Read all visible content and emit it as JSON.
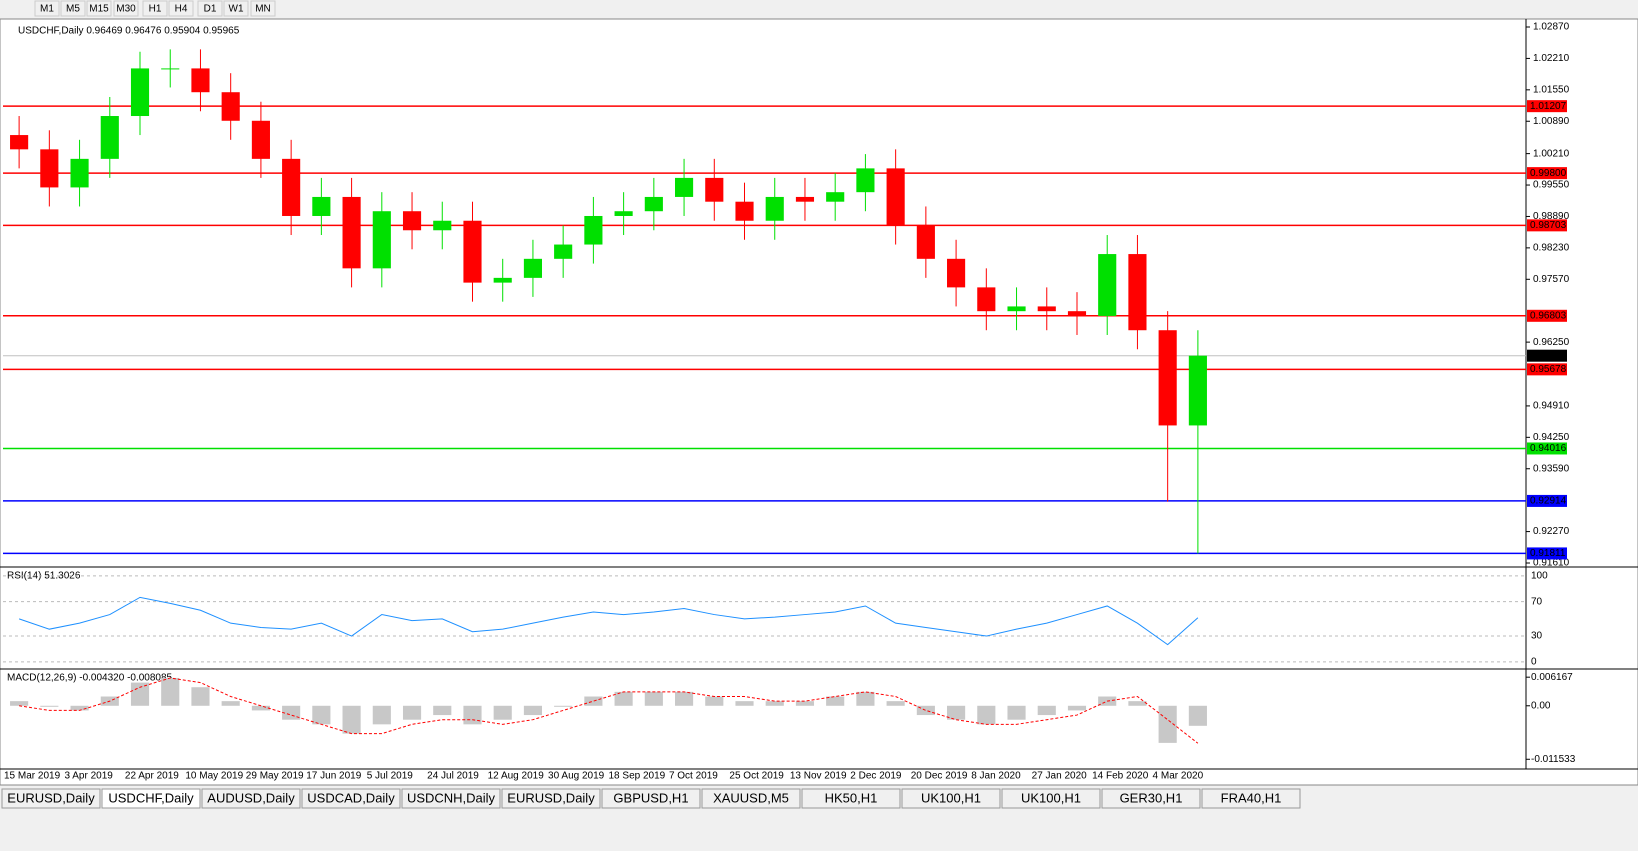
{
  "toolbar": {
    "periods": [
      "M1",
      "M5",
      "M15",
      "M30",
      "H1",
      "H4",
      "D1",
      "W1",
      "MN"
    ]
  },
  "chart_data": {
    "type": "candlestick",
    "header": "USDCHF,Daily  0.96469 0.96476 0.95904 0.95965",
    "x_labels": [
      "15 Mar 2019",
      "3 Apr 2019",
      "22 Apr 2019",
      "10 May 2019",
      "29 May 2019",
      "17 Jun 2019",
      "5 Jul 2019",
      "24 Jul 2019",
      "12 Aug 2019",
      "30 Aug 2019",
      "18 Sep 2019",
      "7 Oct 2019",
      "25 Oct 2019",
      "13 Nov 2019",
      "2 Dec 2019",
      "20 Dec 2019",
      "8 Jan 2020",
      "27 Jan 2020",
      "14 Feb 2020",
      "4 Mar 2020"
    ],
    "open": [
      1.006,
      1.003,
      0.995,
      1.001,
      1.01,
      1.02,
      1.02,
      1.015,
      1.009,
      1.001,
      0.989,
      0.993,
      0.978,
      0.99,
      0.986,
      0.988,
      0.975,
      0.976,
      0.98,
      0.983,
      0.989,
      0.99,
      0.993,
      0.997,
      0.992,
      0.988,
      0.993,
      0.992,
      0.994,
      0.999,
      0.987,
      0.98,
      0.974,
      0.969,
      0.97,
      0.969,
      0.968,
      0.981,
      0.965,
      0.945
    ],
    "high": [
      1.01,
      1.007,
      1.005,
      1.014,
      1.0235,
      1.024,
      1.024,
      1.019,
      1.013,
      1.005,
      0.997,
      0.997,
      0.994,
      0.994,
      0.992,
      0.992,
      0.98,
      0.984,
      0.987,
      0.993,
      0.994,
      0.997,
      1.001,
      1.001,
      0.996,
      0.997,
      0.997,
      0.998,
      1.002,
      1.003,
      0.991,
      0.984,
      0.978,
      0.974,
      0.974,
      0.973,
      0.985,
      0.985,
      0.969,
      0.965
    ],
    "low": [
      0.999,
      0.991,
      0.991,
      0.997,
      1.006,
      1.016,
      1.011,
      1.005,
      0.997,
      0.985,
      0.985,
      0.974,
      0.974,
      0.982,
      0.982,
      0.971,
      0.971,
      0.972,
      0.976,
      0.979,
      0.985,
      0.986,
      0.989,
      0.988,
      0.984,
      0.984,
      0.988,
      0.988,
      0.99,
      0.983,
      0.976,
      0.97,
      0.965,
      0.965,
      0.965,
      0.964,
      0.964,
      0.961,
      0.929,
      0.9181
    ],
    "close": [
      1.003,
      0.995,
      1.001,
      1.01,
      1.02,
      1.02,
      1.015,
      1.009,
      1.001,
      0.989,
      0.993,
      0.978,
      0.99,
      0.986,
      0.988,
      0.975,
      0.976,
      0.98,
      0.983,
      0.989,
      0.99,
      0.993,
      0.997,
      0.992,
      0.988,
      0.993,
      0.992,
      0.994,
      0.999,
      0.987,
      0.98,
      0.974,
      0.969,
      0.97,
      0.969,
      0.968,
      0.981,
      0.965,
      0.945,
      0.95965
    ],
    "up_color": "#00e000",
    "down_color": "#ff0000",
    "ylim": [
      0.91547,
      1.02975
    ],
    "yticks": [
      {
        "value": 1.0287,
        "label": "1.02870"
      },
      {
        "value": 1.0221,
        "label": "1.02210"
      },
      {
        "value": 1.0155,
        "label": "1.01550"
      },
      {
        "value": 1.0089,
        "label": "1.00890"
      },
      {
        "value": 1.0021,
        "label": "1.00210"
      },
      {
        "value": 0.9955,
        "label": "0.99550"
      },
      {
        "value": 0.9889,
        "label": "0.98890"
      },
      {
        "value": 0.9823,
        "label": "0.98230"
      },
      {
        "value": 0.9757,
        "label": "0.97570"
      },
      {
        "value": 0.9625,
        "label": "0.96250"
      },
      {
        "value": 0.9491,
        "label": "0.94910"
      },
      {
        "value": 0.9425,
        "label": "0.94250"
      },
      {
        "value": 0.9359,
        "label": "0.93590"
      },
      {
        "value": 0.9227,
        "label": "0.92270"
      },
      {
        "value": 0.9161,
        "label": "0.91610"
      }
    ],
    "levels": [
      {
        "value": 1.01207,
        "label": "1.01207",
        "color": "#ff0000"
      },
      {
        "value": 0.998,
        "label": "0.99800",
        "color": "#ff0000"
      },
      {
        "value": 0.98703,
        "label": "0.98703",
        "color": "#ff0000"
      },
      {
        "value": 0.96803,
        "label": "0.96803",
        "color": "#ff0000"
      },
      {
        "value": 0.95678,
        "label": "0.95678",
        "color": "#ff0000"
      },
      {
        "value": 0.94016,
        "label": "0.94016",
        "color": "#00e000"
      },
      {
        "value": 0.92914,
        "label": "0.92914",
        "color": "#0000ff"
      },
      {
        "value": 0.91811,
        "label": "0.91811",
        "color": "#0000ff"
      }
    ],
    "current": {
      "value": 0.95965,
      "label": "0.95965"
    }
  },
  "rsi": {
    "type": "line",
    "title": "RSI(14) 51.3026",
    "color": "#1e90ff",
    "values": [
      50,
      38,
      45,
      55,
      75,
      68,
      60,
      45,
      40,
      38,
      45,
      30,
      55,
      48,
      50,
      35,
      38,
      45,
      52,
      58,
      55,
      58,
      62,
      55,
      50,
      52,
      55,
      58,
      65,
      45,
      40,
      35,
      30,
      38,
      45,
      55,
      65,
      45,
      20,
      51.3026
    ],
    "ylim": [
      -6,
      108
    ],
    "yticks": [
      100,
      70,
      30,
      0
    ]
  },
  "macd": {
    "type": "histogram",
    "title": "MACD(12,26,9) -0.004320 -0.008085",
    "values": [
      0.001,
      0,
      -0.001,
      0.002,
      0.005,
      0.006,
      0.004,
      0.001,
      -0.001,
      -0.003,
      -0.004,
      -0.006,
      -0.004,
      -0.003,
      -0.002,
      -0.004,
      -0.003,
      -0.002,
      0,
      0.002,
      0.003,
      0.003,
      0.003,
      0.002,
      0.001,
      0.001,
      0.001,
      0.002,
      0.003,
      0.001,
      -0.002,
      -0.003,
      -0.004,
      -0.003,
      -0.002,
      -0.001,
      0.002,
      0.001,
      -0.008,
      -0.00432
    ],
    "signal": [
      0,
      -0.001,
      -0.001,
      0.001,
      0.004,
      0.006,
      0.005,
      0.002,
      0,
      -0.002,
      -0.004,
      -0.006,
      -0.006,
      -0.004,
      -0.003,
      -0.003,
      -0.004,
      -0.003,
      -0.001,
      0.001,
      0.003,
      0.003,
      0.003,
      0.002,
      0.002,
      0.001,
      0.001,
      0.002,
      0.003,
      0.002,
      -0.001,
      -0.003,
      -0.004,
      -0.004,
      -0.003,
      -0.002,
      0.001,
      0.002,
      -0.003,
      -0.008085
    ],
    "ylim": [
      -0.0132,
      0.0075
    ],
    "yticks": [
      0.006167,
      {
        "value": 0,
        "label": "0.00"
      },
      -0.011533
    ]
  },
  "tabs": {
    "items": [
      "EURUSD,Daily",
      "USDCHF,Daily",
      "AUDUSD,Daily",
      "USDCAD,Daily",
      "USDCNH,Daily",
      "EURUSD,Daily",
      "GBPUSD,H1",
      "XAUUSD,M5",
      "HK50,H1",
      "UK100,H1",
      "UK100,H1",
      "GER30,H1",
      "FRA40,H1"
    ],
    "active": 1
  }
}
